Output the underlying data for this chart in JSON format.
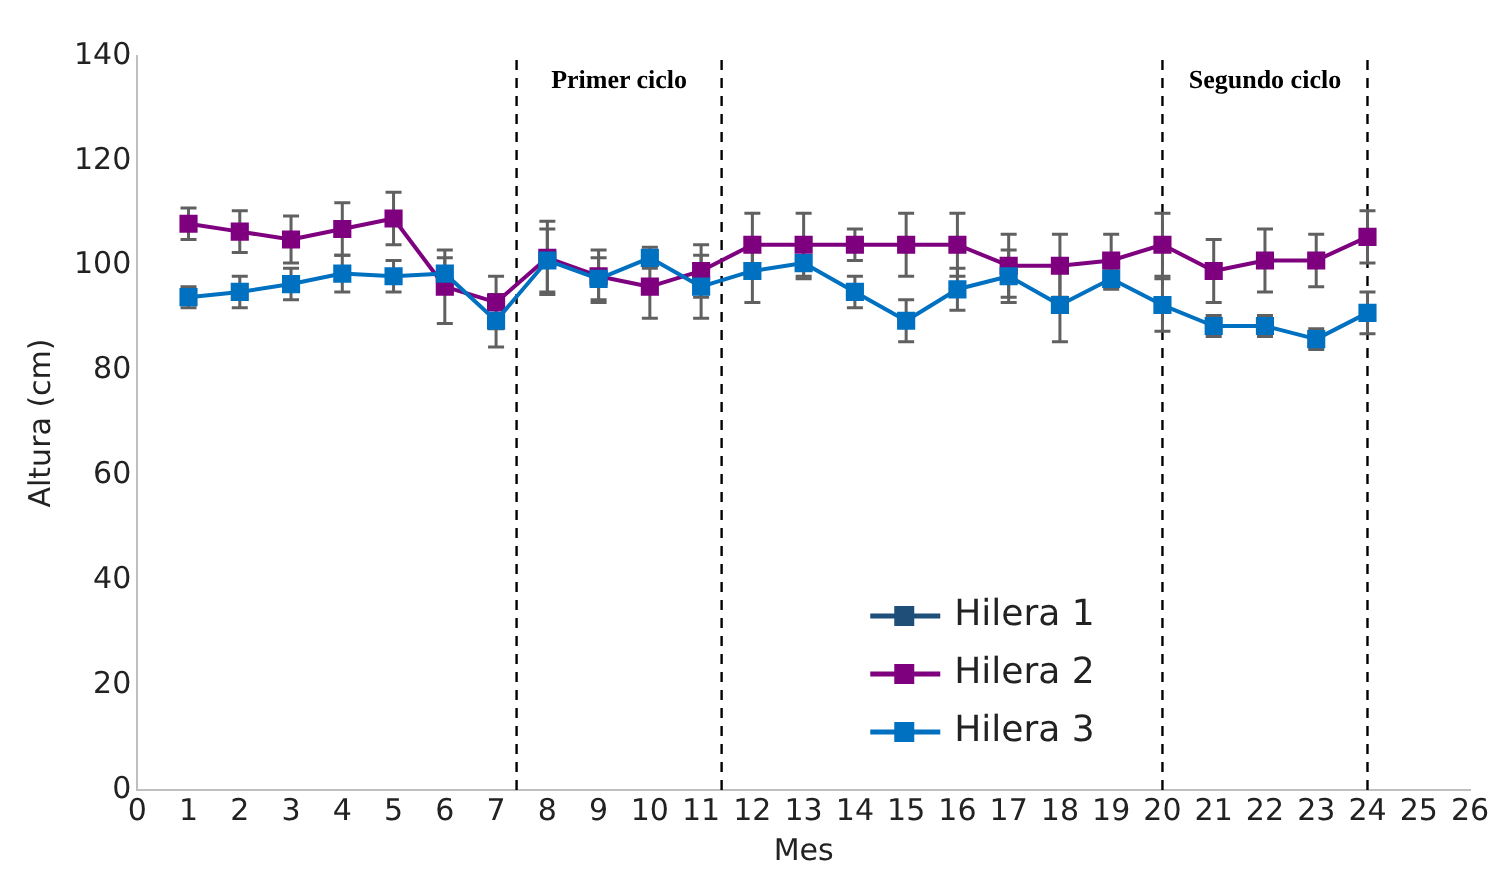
{
  "chart_data": {
    "type": "line",
    "xlabel": "Mes",
    "ylabel": "Altura (cm)",
    "x": [
      1,
      2,
      3,
      4,
      5,
      6,
      7,
      8,
      9,
      10,
      11,
      12,
      13,
      14,
      15,
      16,
      17,
      18,
      19,
      20,
      21,
      22,
      23,
      24
    ],
    "series": [
      {
        "name": "Hilera 1",
        "color": "#1f4e79",
        "values": [
          null,
          null,
          null,
          null,
          null,
          null,
          null,
          null,
          null,
          null,
          null,
          null,
          null,
          null,
          null,
          null,
          null,
          null,
          null,
          null,
          null,
          null,
          null,
          null
        ]
      },
      {
        "name": "Hilera 2",
        "color": "#7f007f",
        "values": [
          108,
          106.5,
          105,
          107,
          109,
          96,
          93,
          101.5,
          98,
          96,
          99,
          104,
          104,
          104,
          104,
          104,
          100,
          100,
          101,
          104,
          99,
          101,
          101,
          105.5
        ],
        "errors": [
          3,
          4,
          4.5,
          5,
          5,
          7,
          5,
          7,
          5,
          6,
          5,
          6,
          6,
          3,
          6,
          6,
          6,
          6,
          5,
          6,
          6,
          6,
          5,
          5
        ]
      },
      {
        "name": "Hilera 3",
        "color": "#0070c0",
        "values": [
          94,
          95,
          96.5,
          98.5,
          98,
          98.5,
          89.5,
          101,
          97.5,
          101.5,
          96,
          99,
          100.5,
          95,
          89.5,
          95.5,
          98,
          92.5,
          97.5,
          92.5,
          88.5,
          88.5,
          86,
          91
        ],
        "errors": [
          2,
          3,
          3,
          3.5,
          3,
          3,
          5,
          6,
          4,
          2,
          6,
          6,
          3,
          3,
          4,
          4,
          5,
          7,
          2,
          5,
          2,
          2,
          2,
          4
        ]
      }
    ],
    "xlim": [
      0,
      26
    ],
    "xticks": [
      0,
      1,
      2,
      3,
      4,
      5,
      6,
      7,
      8,
      9,
      10,
      11,
      12,
      13,
      14,
      15,
      16,
      17,
      18,
      19,
      20,
      21,
      22,
      23,
      24,
      25,
      26
    ],
    "ylim": [
      0,
      140
    ],
    "yticks": [
      0,
      20,
      40,
      60,
      80,
      100,
      120,
      140
    ],
    "grid": false,
    "legend": "bottom right",
    "marker": "square",
    "line_style": "solid",
    "ref_lines": [
      {
        "axis": "x",
        "value": 7.4,
        "color": "#000000",
        "line_style": "dashed"
      },
      {
        "axis": "x",
        "value": 11.4,
        "color": "#000000",
        "line_style": "dashed"
      },
      {
        "axis": "x",
        "value": 20,
        "color": "#000000",
        "line_style": "dashed"
      },
      {
        "axis": "x",
        "value": 24,
        "color": "#000000",
        "line_style": "dashed"
      }
    ],
    "annotations": [
      "Primer ciclo",
      "Segundo ciclo"
    ]
  }
}
